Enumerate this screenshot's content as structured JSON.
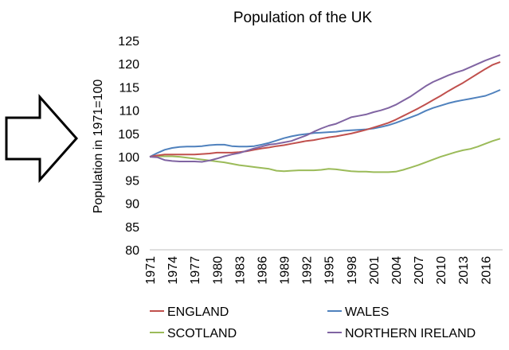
{
  "chart_data": {
    "type": "line",
    "title": "Population of the UK",
    "xlabel": "",
    "ylabel": "Population in 1971=100",
    "ylim": [
      80,
      125
    ],
    "yticks": [
      80,
      85,
      90,
      95,
      100,
      105,
      110,
      115,
      120,
      125
    ],
    "xlim": [
      1971,
      2018
    ],
    "xticks": [
      1971,
      1974,
      1977,
      1980,
      1983,
      1986,
      1989,
      1992,
      1995,
      1998,
      2001,
      2004,
      2007,
      2010,
      2013,
      2016
    ],
    "grid": false,
    "legend_position": "bottom",
    "x": [
      1971,
      1972,
      1973,
      1974,
      1975,
      1976,
      1977,
      1978,
      1979,
      1980,
      1981,
      1982,
      1983,
      1984,
      1985,
      1986,
      1987,
      1988,
      1989,
      1990,
      1991,
      1992,
      1993,
      1994,
      1995,
      1996,
      1997,
      1998,
      1999,
      2000,
      2001,
      2002,
      2003,
      2004,
      2005,
      2006,
      2007,
      2008,
      2009,
      2010,
      2011,
      2012,
      2013,
      2014,
      2015,
      2016,
      2017,
      2018
    ],
    "series": [
      {
        "name": "ENGLAND",
        "color": "#c0504d",
        "values": [
          100,
          100.3,
          100.5,
          100.5,
          100.5,
          100.5,
          100.5,
          100.6,
          100.7,
          100.9,
          100.9,
          100.9,
          101.0,
          101.2,
          101.5,
          101.8,
          102.0,
          102.3,
          102.5,
          102.8,
          103.1,
          103.4,
          103.6,
          103.9,
          104.2,
          104.4,
          104.7,
          105.0,
          105.4,
          105.8,
          106.3,
          106.8,
          107.3,
          108.0,
          108.8,
          109.6,
          110.4,
          111.3,
          112.2,
          113.1,
          114.1,
          115.0,
          115.9,
          116.9,
          117.9,
          118.9,
          119.8,
          120.4
        ]
      },
      {
        "name": "WALES",
        "color": "#4f81bd",
        "values": [
          100,
          100.8,
          101.5,
          101.9,
          102.1,
          102.2,
          102.2,
          102.3,
          102.5,
          102.6,
          102.6,
          102.3,
          102.2,
          102.2,
          102.3,
          102.6,
          103.0,
          103.5,
          104.0,
          104.4,
          104.7,
          104.9,
          105.1,
          105.2,
          105.3,
          105.4,
          105.6,
          105.7,
          105.8,
          105.9,
          106.1,
          106.4,
          106.8,
          107.3,
          107.9,
          108.5,
          109.1,
          109.9,
          110.5,
          111.0,
          111.5,
          111.9,
          112.2,
          112.5,
          112.8,
          113.1,
          113.7,
          114.4
        ]
      },
      {
        "name": "SCOTLAND",
        "color": "#9bbb59",
        "values": [
          100,
          100.1,
          100.1,
          100.1,
          100.0,
          99.8,
          99.6,
          99.4,
          99.2,
          99.0,
          98.8,
          98.5,
          98.2,
          98.0,
          97.8,
          97.6,
          97.4,
          97.0,
          96.9,
          97.0,
          97.1,
          97.1,
          97.1,
          97.2,
          97.4,
          97.3,
          97.1,
          96.9,
          96.8,
          96.8,
          96.7,
          96.7,
          96.7,
          96.8,
          97.2,
          97.7,
          98.2,
          98.8,
          99.4,
          100.0,
          100.5,
          101.0,
          101.4,
          101.7,
          102.2,
          102.8,
          103.4,
          103.9
        ]
      },
      {
        "name": "NORTHERN IRELAND",
        "color": "#8064a2",
        "values": [
          100,
          99.9,
          99.3,
          99.1,
          99.0,
          99.0,
          99.0,
          98.9,
          99.2,
          99.6,
          100.1,
          100.5,
          100.8,
          101.3,
          101.8,
          102.2,
          102.6,
          102.8,
          103.1,
          103.4,
          104.0,
          104.6,
          105.4,
          106.1,
          106.7,
          107.1,
          107.8,
          108.5,
          108.8,
          109.1,
          109.6,
          110.0,
          110.5,
          111.2,
          112.1,
          113.0,
          114.1,
          115.2,
          116.1,
          116.8,
          117.5,
          118.1,
          118.6,
          119.3,
          120.0,
          120.7,
          121.3,
          121.9
        ]
      }
    ]
  },
  "decoration": {
    "arrow_icon": "right-arrow-outline"
  }
}
